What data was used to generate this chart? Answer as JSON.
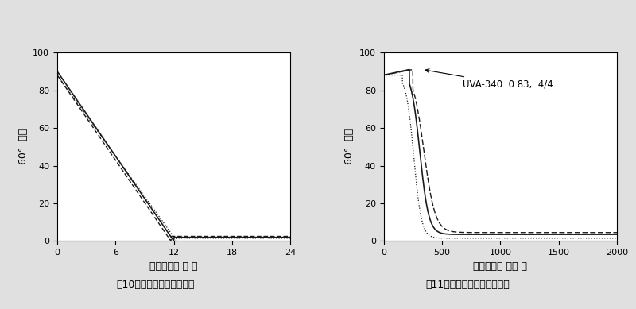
{
  "fig1_title": "图10－环氧树脂、户外老化",
  "fig2_title": "图11－环氧树脂、实验室老化",
  "ylabel": "60°  光泽",
  "xlabel1": "曝晒时间（ 月 ）",
  "xlabel2": "曝晒时间（ 小时 ）",
  "fig1_xlim": [
    0,
    24
  ],
  "fig1_ylim": [
    0,
    100
  ],
  "fig1_xticks": [
    0,
    6,
    12,
    18,
    24
  ],
  "fig1_yticks": [
    0,
    20,
    40,
    60,
    80,
    100
  ],
  "fig2_xlim": [
    0,
    2000
  ],
  "fig2_ylim": [
    0,
    100
  ],
  "fig2_xticks": [
    0,
    500,
    1000,
    1500,
    2000
  ],
  "fig2_yticks": [
    0,
    20,
    40,
    60,
    80,
    100
  ],
  "annotation_text": "UVA-340  0.83,  4/4",
  "bg_color": "#e0e0e0",
  "line_color": "#1a1a1a",
  "title_fontsize": 9,
  "label_fontsize": 9,
  "tick_fontsize": 8
}
